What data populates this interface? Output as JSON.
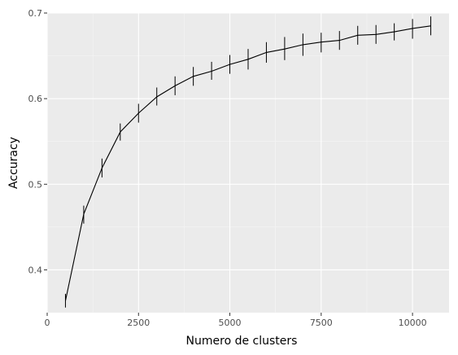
{
  "chart_data": {
    "type": "line",
    "xlabel": "Numero de clusters",
    "ylabel": "Accuracy",
    "xlim": [
      0,
      11000
    ],
    "ylim": [
      0.35,
      0.7
    ],
    "x_ticks": [
      0,
      2500,
      5000,
      7500,
      10000
    ],
    "x_tick_labels": [
      "0",
      "2500",
      "5000",
      "7500",
      "10000"
    ],
    "y_ticks": [
      0.4,
      0.5,
      0.6,
      0.7
    ],
    "y_tick_labels": [
      "0.4",
      "0.5",
      "0.6",
      "0.7"
    ],
    "grid": true,
    "legend": "none",
    "colors": {
      "panel_background": "#ebebeb",
      "grid_major": "#ffffff",
      "grid_minor": "#f5f5f5",
      "line": "#000000",
      "tick_text": "#4d4d4d",
      "axis_text": "#000000"
    },
    "series": [
      {
        "x": [
          500,
          1000,
          1500,
          2000,
          2500,
          3000,
          3500,
          4000,
          4500,
          5000,
          5500,
          6000,
          6500,
          7000,
          7500,
          8000,
          8500,
          9000,
          9500,
          10000,
          10500
        ],
        "y": [
          0.364,
          0.465,
          0.519,
          0.561,
          0.583,
          0.602,
          0.615,
          0.626,
          0.632,
          0.64,
          0.646,
          0.654,
          0.658,
          0.663,
          0.666,
          0.668,
          0.674,
          0.675,
          0.678,
          0.682,
          0.685
        ],
        "y_low": [
          0.356,
          0.454,
          0.508,
          0.551,
          0.572,
          0.592,
          0.604,
          0.615,
          0.622,
          0.629,
          0.634,
          0.642,
          0.645,
          0.65,
          0.654,
          0.657,
          0.663,
          0.664,
          0.668,
          0.67,
          0.674
        ],
        "y_high": [
          0.372,
          0.475,
          0.53,
          0.571,
          0.594,
          0.613,
          0.626,
          0.637,
          0.643,
          0.651,
          0.658,
          0.666,
          0.672,
          0.676,
          0.677,
          0.679,
          0.685,
          0.686,
          0.688,
          0.693,
          0.696
        ]
      }
    ]
  }
}
